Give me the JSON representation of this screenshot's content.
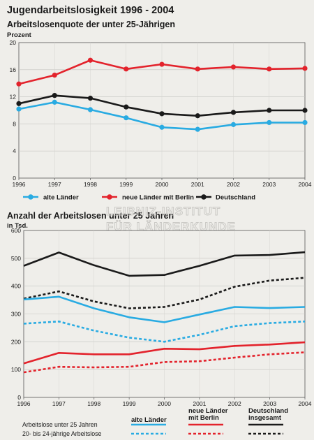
{
  "title": "Jugendarbeitslosigkeit 1996 - 2004",
  "watermark": [
    "LEIBNIZ-INSTITUT",
    "FÜR LÄNDERKUNDE"
  ],
  "colors": {
    "alte": "#29abe2",
    "neue": "#e3232c",
    "gesamt": "#1a1a1a"
  },
  "chart_data": [
    {
      "type": "line",
      "title": "Arbeitslosenquote der unter 25-Jährigen",
      "ylabel": "Prozent",
      "x": [
        1996,
        1997,
        1998,
        1999,
        2000,
        2001,
        2002,
        2003,
        2004
      ],
      "ylim": [
        0,
        20
      ],
      "yticks": [
        0,
        4,
        8,
        12,
        16,
        20
      ],
      "grid": true,
      "legend": "bottom",
      "series": [
        {
          "name": "alte Länder",
          "color_key": "alte",
          "values": [
            10.2,
            11.2,
            10.1,
            8.9,
            7.5,
            7.2,
            7.9,
            8.2,
            8.2
          ]
        },
        {
          "name": "neue Länder mit Berlin",
          "color_key": "neue",
          "values": [
            13.9,
            15.2,
            17.4,
            16.1,
            16.8,
            16.1,
            16.4,
            16.1,
            16.2
          ]
        },
        {
          "name": "Deutschland",
          "color_key": "gesamt",
          "values": [
            11.0,
            12.2,
            11.8,
            10.5,
            9.5,
            9.2,
            9.7,
            10.0,
            10.0
          ]
        }
      ]
    },
    {
      "type": "line",
      "title": "Anzahl der Arbeitslosen unter 25 Jahren",
      "ylabel": "in Tsd.",
      "x": [
        1996,
        1997,
        1998,
        1999,
        2000,
        2001,
        2002,
        2003,
        2004
      ],
      "ylim": [
        0,
        600
      ],
      "yticks": [
        0,
        100,
        200,
        300,
        400,
        500,
        600
      ],
      "grid": true,
      "legend": "bottom",
      "legend_columns": [
        "alte Länder",
        "neue Länder mit Berlin",
        "Deutschland insgesamt"
      ],
      "legend_rows": [
        "Arbeitslose unter 25 Jahren",
        "20- bis 24-jährige Arbeitslose"
      ],
      "series": [
        {
          "name": "Deutschland insgesamt – Arbeitslose unter 25 Jahren",
          "color_key": "gesamt",
          "dash": false,
          "values": [
            473,
            521,
            475,
            437,
            440,
            473,
            510,
            512,
            522
          ]
        },
        {
          "name": "Deutschland insgesamt – 20- bis 24-jährige Arbeitslose",
          "color_key": "gesamt",
          "dash": true,
          "values": [
            355,
            381,
            345,
            320,
            325,
            352,
            398,
            420,
            430
          ]
        },
        {
          "name": "alte Länder – Arbeitslose unter 25 Jahren",
          "color_key": "alte",
          "dash": false,
          "values": [
            352,
            362,
            320,
            288,
            270,
            298,
            325,
            321,
            325
          ]
        },
        {
          "name": "alte Länder – 20- bis 24-jährige Arbeitslose",
          "color_key": "alte",
          "dash": true,
          "values": [
            265,
            273,
            240,
            215,
            200,
            225,
            256,
            267,
            273
          ]
        },
        {
          "name": "neue Länder mit Berlin – Arbeitslose unter 25 Jahren",
          "color_key": "neue",
          "dash": false,
          "values": [
            122,
            160,
            155,
            155,
            175,
            173,
            185,
            190,
            198
          ]
        },
        {
          "name": "neue Länder mit Berlin – 20- bis 24-jährige Arbeitslose",
          "color_key": "neue",
          "dash": true,
          "values": [
            90,
            110,
            108,
            110,
            127,
            130,
            143,
            155,
            162
          ]
        }
      ]
    }
  ]
}
